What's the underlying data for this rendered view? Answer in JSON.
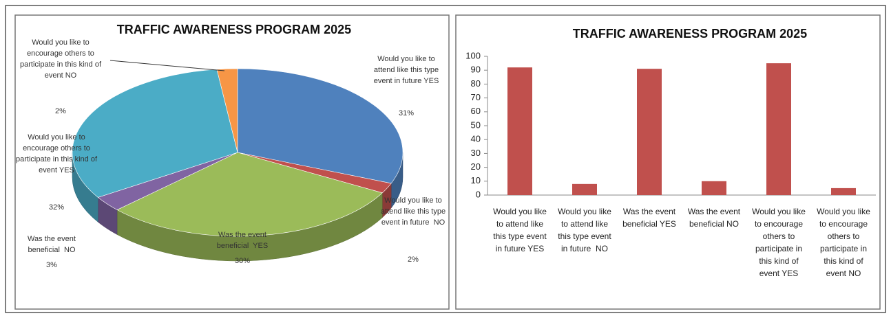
{
  "chart_data": [
    {
      "type": "pie",
      "title": "TRAFFIC AWARENESS PROGRAM 2025",
      "categories": [
        "Would you like to attend like this type event in future YES",
        "Would you like to attend like this type event in future  NO",
        "Was the event beneficial  YES",
        "Was the event beneficial  NO",
        "Would you like to encourage others to participate in this kind of event YES",
        "Would you like to encourage others to participate in this kind of event NO"
      ],
      "values": [
        31,
        2,
        30,
        3,
        32,
        2
      ],
      "value_labels": [
        "31%",
        "2%",
        "30%",
        "3%",
        "32%",
        "2%"
      ],
      "colors": [
        "#4f81bd",
        "#c0504d",
        "#9bbb59",
        "#8064a2",
        "#4bacc6",
        "#f79646"
      ]
    },
    {
      "type": "bar",
      "title": "TRAFFIC AWARENESS PROGRAM 2025",
      "categories": [
        "Would you like to attend like this type event in future YES",
        "Would you like to attend like this type event in future  NO",
        "Was the event beneficial YES",
        "Was the event beneficial NO",
        "Would you like to encourage others to participate in this kind of event YES",
        "Would you like to encourage others to participate in this kind of event NO"
      ],
      "values": [
        92,
        8,
        91,
        10,
        95,
        5
      ],
      "color": "#c0504d",
      "ylim": [
        0,
        100
      ],
      "yticks": [
        0,
        10,
        20,
        30,
        40,
        50,
        60,
        70,
        80,
        90,
        100
      ],
      "grid": false
    }
  ]
}
